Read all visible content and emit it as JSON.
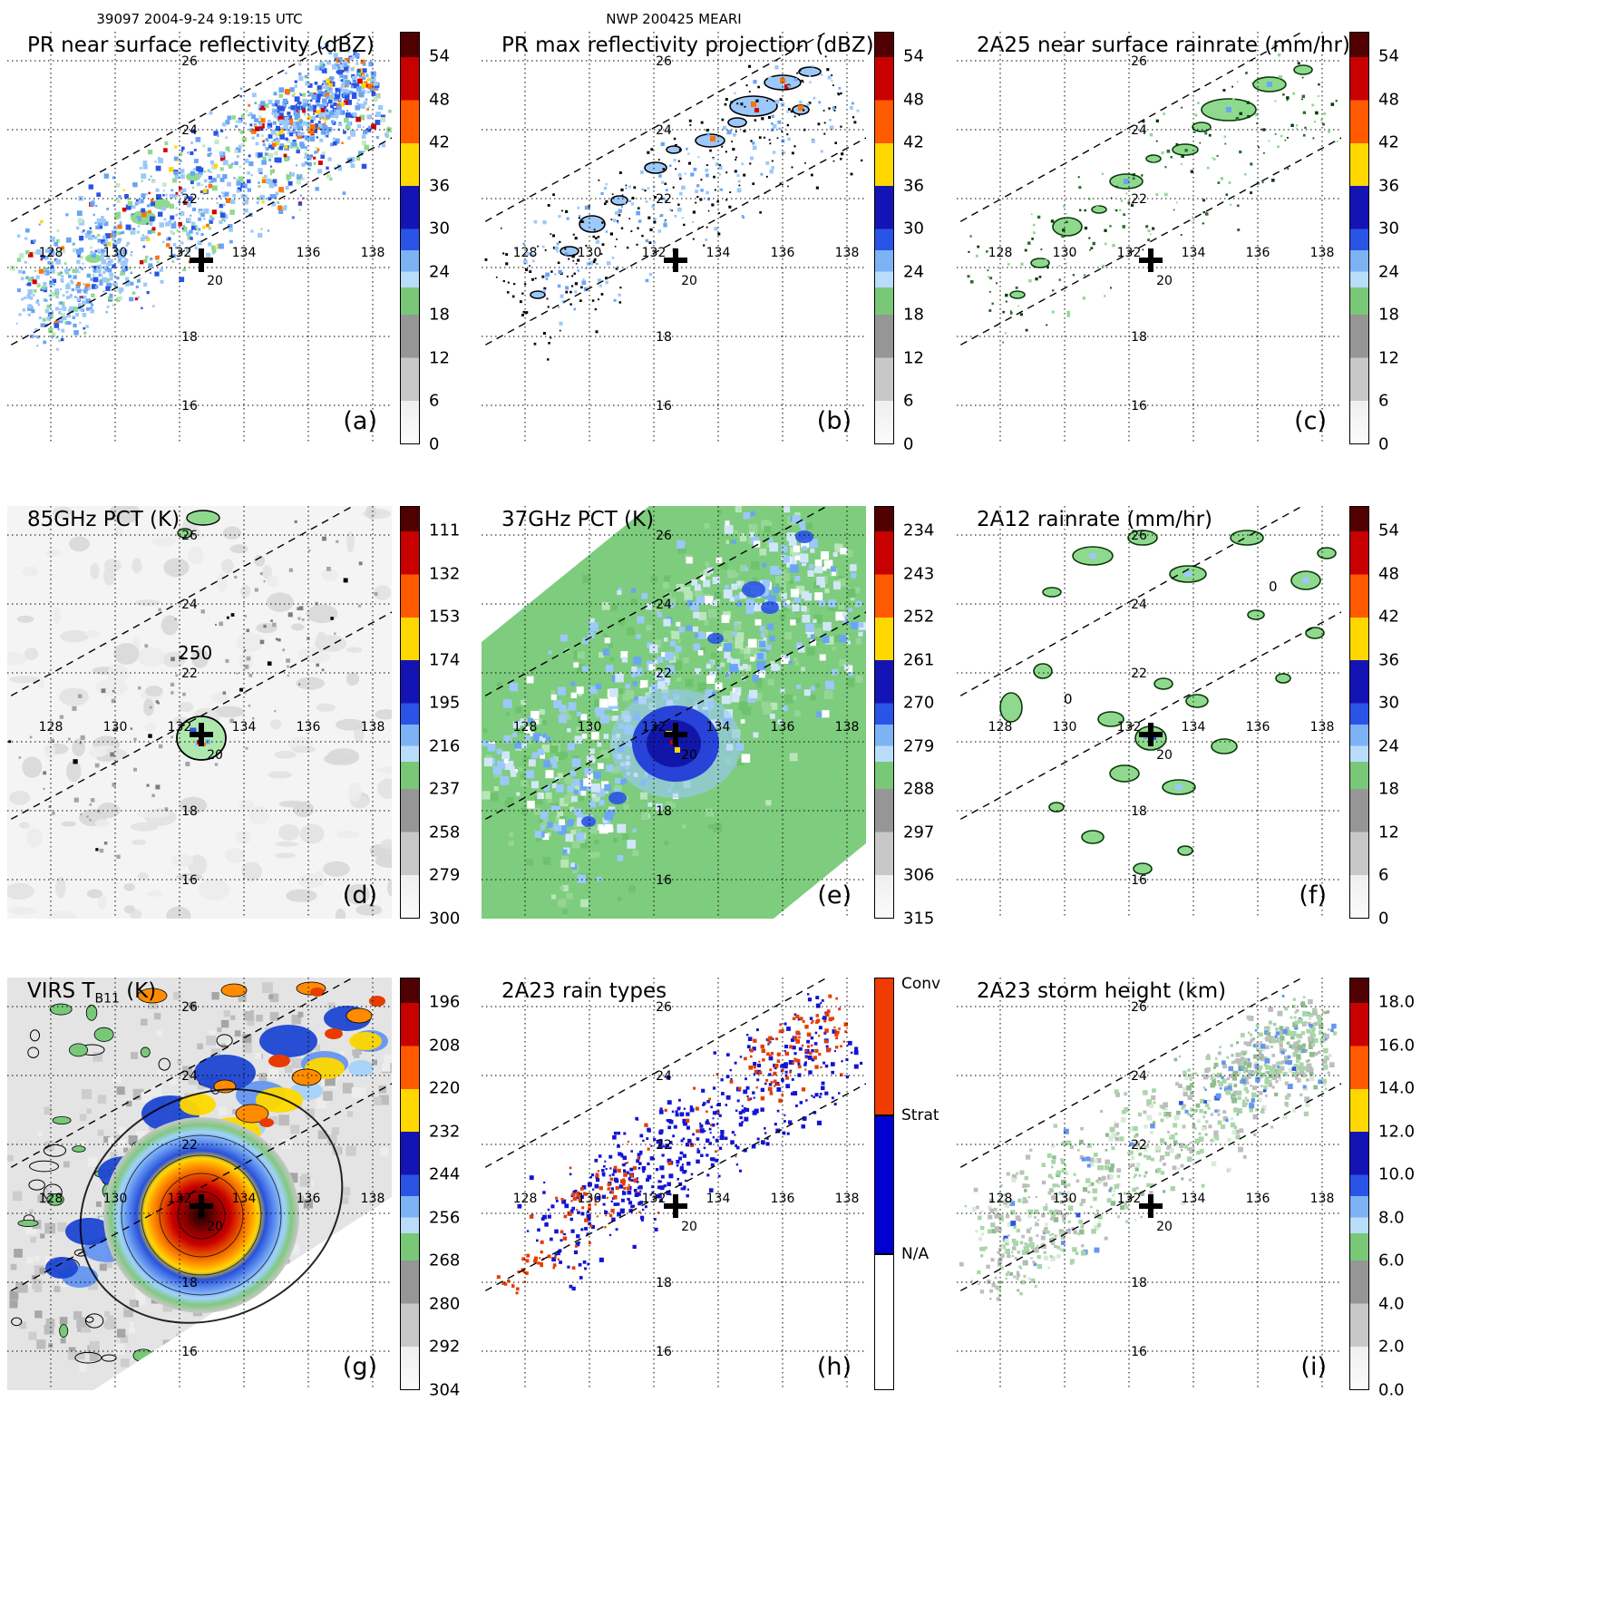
{
  "header": {
    "left": "39097 2004-9-24 9:19:15 UTC",
    "center": "NWP 200425 MEARI"
  },
  "axis": {
    "lon_labels": [
      "128",
      "130",
      "132",
      "134",
      "136",
      "138"
    ],
    "lat_labels": [
      "26",
      "24",
      "22",
      "20",
      "18",
      "16"
    ]
  },
  "panels": {
    "a": {
      "title": "PR near surface reflectivity (dBZ)",
      "letter": "(a)",
      "cb_ticks": [
        "54",
        "48",
        "42",
        "36",
        "30",
        "24",
        "18",
        "12",
        "6",
        "0"
      ]
    },
    "b": {
      "title": "PR max reflectivity projection (dBZ)",
      "letter": "(b)",
      "cb_ticks": [
        "54",
        "48",
        "42",
        "36",
        "30",
        "24",
        "18",
        "12",
        "6",
        "0"
      ]
    },
    "c": {
      "title": "2A25 near surface rainrate (mm/hr)",
      "letter": "(c)",
      "cb_ticks": [
        "54",
        "48",
        "42",
        "36",
        "30",
        "24",
        "18",
        "12",
        "6",
        "0"
      ]
    },
    "d": {
      "title": "85GHz PCT (K)",
      "letter": "(d)",
      "cb_ticks": [
        "111",
        "132",
        "153",
        "174",
        "195",
        "216",
        "237",
        "258",
        "279",
        "300"
      ],
      "annotations": [
        "250"
      ]
    },
    "e": {
      "title": "37GHz PCT (K)",
      "letter": "(e)",
      "cb_ticks": [
        "234",
        "243",
        "252",
        "261",
        "270",
        "279",
        "288",
        "297",
        "306",
        "315"
      ]
    },
    "f": {
      "title": "2A12 rainrate (mm/hr)",
      "letter": "(f)",
      "cb_ticks": [
        "54",
        "48",
        "42",
        "36",
        "30",
        "24",
        "18",
        "12",
        "6",
        "0"
      ],
      "annotations": [
        "0",
        "0"
      ]
    },
    "g": {
      "title_prefix": "VIRS T",
      "title_sub": "B11",
      "title_suffix": " (K)",
      "letter": "(g)",
      "cb_ticks": [
        "196",
        "208",
        "220",
        "232",
        "244",
        "256",
        "268",
        "280",
        "292",
        "304"
      ]
    },
    "h": {
      "title": "2A23 rain types",
      "letter": "(h)",
      "cb_labels": [
        "Conv",
        "Strat",
        "N/A"
      ]
    },
    "i": {
      "title": "2A23 storm height (km)",
      "letter": "(i)",
      "cb_ticks": [
        "18.0",
        "16.0",
        "14.0",
        "12.0",
        "10.0",
        "8.0",
        "6.0",
        "4.0",
        "2.0",
        "0.0"
      ]
    }
  },
  "chart_data": [
    {
      "panel": "a",
      "type": "heatmap",
      "title": "PR near surface reflectivity (dBZ)",
      "units": "dBZ",
      "colorbar_ticks": [
        54,
        48,
        42,
        36,
        30,
        24,
        18,
        12,
        6,
        0
      ],
      "lon_ticks": [
        128,
        130,
        132,
        134,
        136,
        138
      ],
      "lat_ticks": [
        26,
        24,
        22,
        20,
        18,
        16
      ],
      "storm_center_marker": {
        "lon": 132.7,
        "lat": 20.1
      },
      "notes": "Scattered rain cells of roughly 18-45 dBZ along the narrow PR swath running southwest to northeast across 21-26N, 128-138E"
    },
    {
      "panel": "b",
      "type": "heatmap",
      "title": "PR max reflectivity projection (dBZ)",
      "units": "dBZ",
      "colorbar_ticks": [
        54,
        48,
        42,
        36,
        30,
        24,
        18,
        12,
        6,
        0
      ],
      "lon_ticks": [
        128,
        130,
        132,
        134,
        136,
        138
      ],
      "lat_ticks": [
        26,
        24,
        22,
        20,
        18,
        16
      ],
      "storm_center_marker": {
        "lon": 132.7,
        "lat": 20.1
      },
      "notes": "Column-maximum reflectivity; same cells as (a) shown as black-outlined light blue patches with embedded 36-48 dBZ orange/red cores"
    },
    {
      "panel": "c",
      "type": "heatmap",
      "title": "2A25 near surface rainrate (mm/hr)",
      "units": "mm/hr",
      "colorbar_ticks": [
        54,
        48,
        42,
        36,
        30,
        24,
        18,
        12,
        6,
        0
      ],
      "lon_ticks": [
        128,
        130,
        132,
        134,
        136,
        138
      ],
      "lat_ticks": [
        26,
        24,
        22,
        20,
        18,
        16
      ],
      "storm_center_marker": {
        "lon": 132.7,
        "lat": 20.1
      },
      "notes": "Near-surface rainrate mostly below 12 mm/hr (green) in dark-outlined cells along the PR swath"
    },
    {
      "panel": "d",
      "type": "heatmap",
      "title": "85GHz PCT (K)",
      "units": "K",
      "colorbar_ticks": [
        111,
        132,
        153,
        174,
        195,
        216,
        237,
        258,
        279,
        300
      ],
      "lon_ticks": [
        128,
        130,
        132,
        134,
        136,
        138
      ],
      "lat_ticks": [
        26,
        24,
        22,
        20,
        18,
        16
      ],
      "contour_labels": [
        "250"
      ],
      "storm_center_marker": {
        "lon": 132.7,
        "lat": 20.1
      },
      "notes": "Mostly warm background near 280-300 K; compact cold eyewall feature near 132.8E 20.2N with PCT below 195 K inside the 250 K contour"
    },
    {
      "panel": "e",
      "type": "heatmap",
      "title": "37GHz PCT (K)",
      "units": "K",
      "colorbar_ticks": [
        234,
        243,
        252,
        261,
        270,
        279,
        288,
        297,
        306,
        315
      ],
      "lon_ticks": [
        128,
        130,
        132,
        134,
        136,
        138
      ],
      "lat_ticks": [
        26,
        24,
        22,
        20,
        18,
        16
      ],
      "storm_center_marker": {
        "lon": 132.7,
        "lat": 20.1
      },
      "notes": "Broad green background near 288 K with pale blue banding and a deep blue low-PCT core (with small yellow/red minima) at the storm center"
    },
    {
      "panel": "f",
      "type": "heatmap",
      "title": "2A12 rainrate (mm/hr)",
      "units": "mm/hr",
      "colorbar_ticks": [
        54,
        48,
        42,
        36,
        30,
        24,
        18,
        12,
        6,
        0
      ],
      "lon_ticks": [
        128,
        130,
        132,
        134,
        136,
        138
      ],
      "lat_ticks": [
        26,
        24,
        22,
        20,
        18,
        16
      ],
      "contour_labels": [
        "0",
        "0"
      ],
      "storm_center_marker": {
        "lon": 132.7,
        "lat": 20.1
      },
      "notes": "TMI rainrate; light rain (about 6 mm/hr, green outlined patches) in bands spiraling around the center with a small blue core"
    },
    {
      "panel": "g",
      "type": "heatmap",
      "title": "VIRS TB11 (K)",
      "units": "K",
      "colorbar_ticks": [
        196,
        208,
        220,
        232,
        244,
        256,
        268,
        280,
        292,
        304
      ],
      "lon_ticks": [
        128,
        130,
        132,
        134,
        136,
        138
      ],
      "lat_ticks": [
        26,
        24,
        22,
        20,
        18,
        16
      ],
      "storm_center_marker": {
        "lon": 132.7,
        "lat": 20.1
      },
      "notes": "IR brightness temperature; large cold central dense overcast with eye below 196 K (dark red), surrounding orange/yellow shield, blue outflow bands and warm gray sea surface to the west"
    },
    {
      "panel": "h",
      "type": "heatmap",
      "title": "2A23 rain types",
      "categories": [
        "Conv",
        "Strat",
        "N/A"
      ],
      "lon_ticks": [
        128,
        130,
        132,
        134,
        136,
        138
      ],
      "lat_ticks": [
        26,
        24,
        22,
        20,
        18,
        16
      ],
      "storm_center_marker": {
        "lon": 132.7,
        "lat": 20.1
      },
      "notes": "Stratiform (blue) pixels dominate the PR swath with embedded convective (red) clusters, mainly in the northeast cells"
    },
    {
      "panel": "i",
      "type": "heatmap",
      "title": "2A23 storm height (km)",
      "units": "km",
      "colorbar_ticks": [
        18.0,
        16.0,
        14.0,
        12.0,
        10.0,
        8.0,
        6.0,
        4.0,
        2.0,
        0.0
      ],
      "lon_ticks": [
        128,
        130,
        132,
        134,
        136,
        138
      ],
      "lat_ticks": [
        26,
        24,
        22,
        20,
        18,
        16
      ],
      "storm_center_marker": {
        "lon": 132.7,
        "lat": 20.1
      },
      "notes": "Storm heights mostly 4-8 km (gray/green) along the swath with isolated 8-12 km blue tops in the northeastern cells"
    }
  ]
}
